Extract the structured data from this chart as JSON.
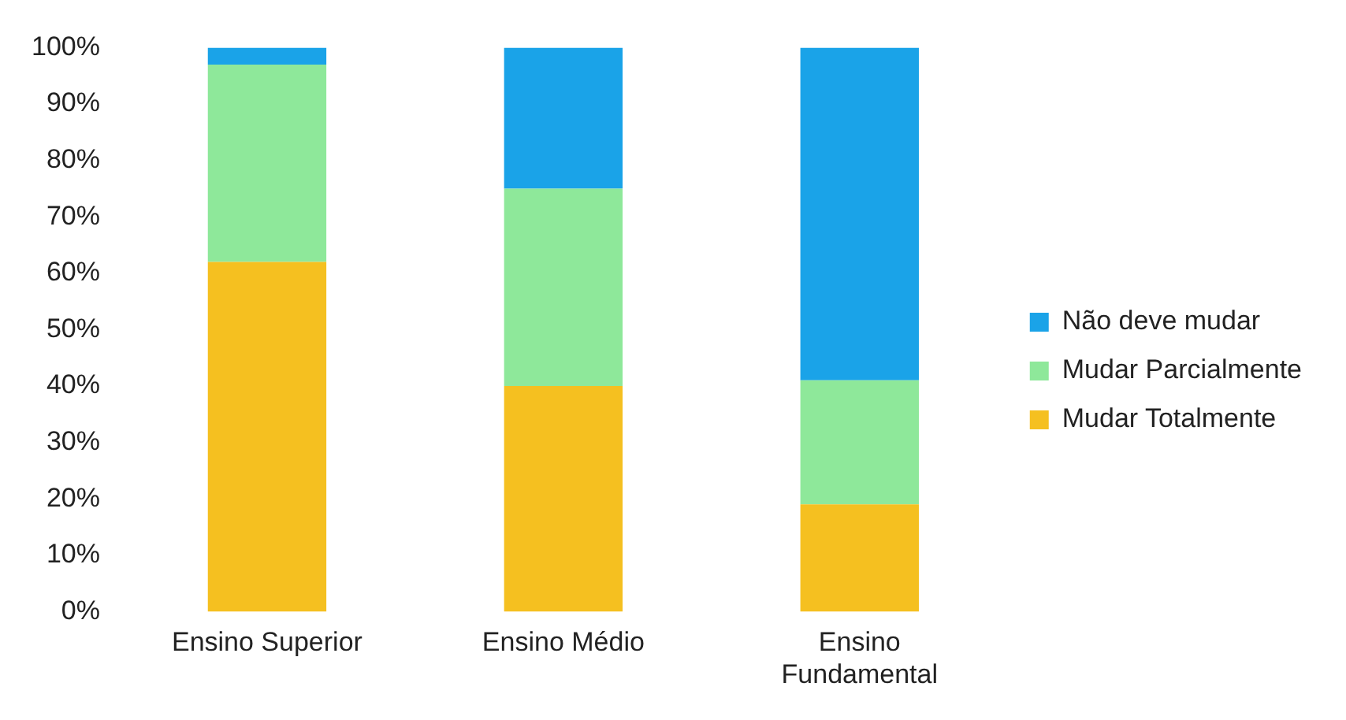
{
  "chart_data": {
    "type": "bar",
    "stacked": true,
    "categories": [
      "Ensino Superior",
      "Ensino Médio",
      "Ensino Fundamental"
    ],
    "series": [
      {
        "name": "Mudar Totalmente",
        "color": "#f5c020",
        "values": [
          62,
          40,
          19
        ]
      },
      {
        "name": "Mudar Parcialmente",
        "color": "#8ee89a",
        "values": [
          35,
          35,
          22
        ]
      },
      {
        "name": "Não deve mudar",
        "color": "#1aa3e8",
        "values": [
          3,
          25,
          59
        ]
      }
    ],
    "ylim": [
      0,
      100
    ],
    "yticks": [
      {
        "value": 0,
        "label": "0%"
      },
      {
        "value": 10,
        "label": "10%"
      },
      {
        "value": 20,
        "label": "20%"
      },
      {
        "value": 30,
        "label": "30%"
      },
      {
        "value": 40,
        "label": "40%"
      },
      {
        "value": 50,
        "label": "50%"
      },
      {
        "value": 60,
        "label": "60%"
      },
      {
        "value": 70,
        "label": "70%"
      },
      {
        "value": 80,
        "label": "80%"
      },
      {
        "value": 90,
        "label": "90%"
      },
      {
        "value": 100,
        "label": "100%"
      }
    ],
    "grid": false,
    "legend": "right"
  }
}
